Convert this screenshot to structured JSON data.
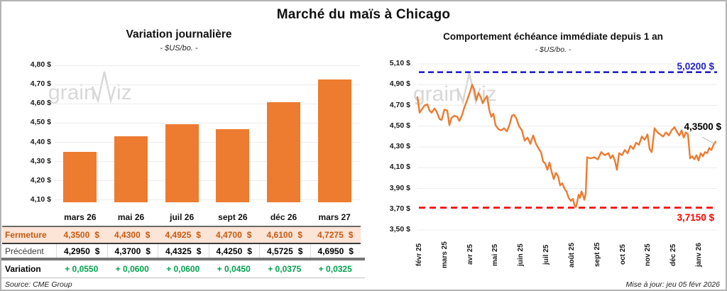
{
  "header": {
    "title": "Marché du maïs à Chicago"
  },
  "watermark": {
    "text_left": "grain",
    "text_right": "iz"
  },
  "colors": {
    "orange": "#ED7B30",
    "fermeture_text": "#C55A11",
    "fermeture_bg": "#FCE4D6",
    "variation_green": "#00A24D",
    "resistance_blue": "#2222CC",
    "support_red": "#FE0000",
    "gridline": "#ececec",
    "watermark_gray": "#d8d8d8"
  },
  "chart_data": [
    {
      "id": "variation_journaliere",
      "type": "bar",
      "title": "Variation journalière",
      "subtitle": "- $US/bo. -",
      "categories": [
        "mars 26",
        "mai 26",
        "juil 26",
        "sept 26",
        "déc 26",
        "mars 27"
      ],
      "values": [
        4.35,
        4.43,
        4.4925,
        4.47,
        4.61,
        4.7275
      ],
      "y_tick_labels": [
        "4,80 $",
        "4,70 $",
        "4,60 $",
        "4,50 $",
        "4,40 $",
        "4,30 $",
        "4,20 $",
        "4,10 $"
      ],
      "y_tick_values": [
        4.8,
        4.7,
        4.6,
        4.5,
        4.4,
        4.3,
        4.2,
        4.1
      ],
      "ylim": [
        4.085,
        4.8
      ],
      "grid": true,
      "bar_color": "#ED7B30"
    },
    {
      "id": "echeance_immediate",
      "type": "line",
      "title": "Comportement échéance immédiate depuis 1 an",
      "subtitle": "- $US/bo. -",
      "y_tick_labels": [
        "5,10 $",
        "4,90 $",
        "4,70 $",
        "4,50 $",
        "4,30 $",
        "4,10 $",
        "3,90 $",
        "3,70 $",
        "3,50 $"
      ],
      "y_tick_values": [
        5.1,
        4.9,
        4.7,
        4.5,
        4.3,
        4.1,
        3.9,
        3.7,
        3.5
      ],
      "ylim": [
        3.5,
        5.1
      ],
      "grid": true,
      "x_labels": [
        "févr 25",
        "mars 25",
        "avr 25",
        "mai 25",
        "juin 25",
        "juil 25",
        "août 25",
        "sept 25",
        "oct 25",
        "nov 25",
        "déc 25",
        "janv 26"
      ],
      "line_color": "#ED7B30",
      "resistance": {
        "value": 5.02,
        "label": "5,0200 $"
      },
      "support": {
        "value": 3.715,
        "label": "3,7150 $"
      },
      "last_point": {
        "value": 4.35,
        "label": "4,3500 $"
      },
      "points": [
        [
          0,
          4.78
        ],
        [
          3,
          4.63
        ],
        [
          6,
          4.66
        ],
        [
          10,
          4.7
        ],
        [
          14,
          4.71
        ],
        [
          17,
          4.65
        ],
        [
          20,
          4.63
        ],
        [
          24,
          4.67
        ],
        [
          27,
          4.64
        ],
        [
          31,
          4.57
        ],
        [
          34,
          4.56
        ],
        [
          38,
          4.66
        ],
        [
          42,
          4.65
        ],
        [
          45,
          4.51
        ],
        [
          48,
          4.58
        ],
        [
          52,
          4.6
        ],
        [
          56,
          4.59
        ],
        [
          59,
          4.55
        ],
        [
          63,
          4.61
        ],
        [
          66,
          4.68
        ],
        [
          70,
          4.75
        ],
        [
          74,
          4.83
        ],
        [
          77,
          4.9
        ],
        [
          80,
          4.85
        ],
        [
          83,
          4.75
        ],
        [
          86,
          4.82
        ],
        [
          89,
          4.78
        ],
        [
          92,
          4.72
        ],
        [
          95,
          4.76
        ],
        [
          98,
          4.79
        ],
        [
          101,
          4.66
        ],
        [
          104,
          4.59
        ],
        [
          107,
          4.62
        ],
        [
          110,
          4.51
        ],
        [
          114,
          4.47
        ],
        [
          118,
          4.46
        ],
        [
          122,
          4.48
        ],
        [
          126,
          4.45
        ],
        [
          130,
          4.52
        ],
        [
          133,
          4.6
        ],
        [
          136,
          4.61
        ],
        [
          139,
          4.58
        ],
        [
          143,
          4.5
        ],
        [
          147,
          4.46
        ],
        [
          151,
          4.36
        ],
        [
          155,
          4.39
        ],
        [
          159,
          4.33
        ],
        [
          163,
          4.41
        ],
        [
          167,
          4.33
        ],
        [
          171,
          4.28
        ],
        [
          174,
          4.25
        ],
        [
          177,
          4.16
        ],
        [
          180,
          4.14
        ],
        [
          183,
          4.08
        ],
        [
          186,
          4.15
        ],
        [
          189,
          4.06
        ],
        [
          192,
          3.99
        ],
        [
          195,
          4.05
        ],
        [
          198,
          4.02
        ],
        [
          201,
          3.93
        ],
        [
          204,
          3.95
        ],
        [
          207,
          3.9
        ],
        [
          210,
          3.87
        ],
        [
          213,
          3.81
        ],
        [
          216,
          3.78
        ],
        [
          219,
          3.8
        ],
        [
          221,
          3.74
        ],
        [
          223,
          3.72
        ],
        [
          225,
          3.77
        ],
        [
          227,
          3.84
        ],
        [
          229,
          3.81
        ],
        [
          231,
          3.87
        ],
        [
          233,
          3.84
        ],
        [
          235,
          3.79
        ],
        [
          237,
          3.85
        ],
        [
          239,
          4.2
        ],
        [
          244,
          4.19
        ],
        [
          249,
          4.2
        ],
        [
          254,
          4.18
        ],
        [
          259,
          4.25
        ],
        [
          264,
          4.22
        ],
        [
          269,
          4.24
        ],
        [
          272,
          4.19
        ],
        [
          275,
          4.22
        ],
        [
          278,
          4.17
        ],
        [
          281,
          4.08
        ],
        [
          284,
          4.24
        ],
        [
          288,
          4.22
        ],
        [
          292,
          4.27
        ],
        [
          296,
          4.24
        ],
        [
          300,
          4.31
        ],
        [
          304,
          4.28
        ],
        [
          308,
          4.34
        ],
        [
          312,
          4.32
        ],
        [
          316,
          4.4
        ],
        [
          320,
          4.37
        ],
        [
          324,
          4.42
        ],
        [
          327,
          4.28
        ],
        [
          330,
          4.25
        ],
        [
          334,
          4.48
        ],
        [
          338,
          4.44
        ],
        [
          342,
          4.42
        ],
        [
          346,
          4.4
        ],
        [
          350,
          4.44
        ],
        [
          354,
          4.41
        ],
        [
          358,
          4.46
        ],
        [
          362,
          4.49
        ],
        [
          366,
          4.44
        ],
        [
          369,
          4.41
        ],
        [
          372,
          4.46
        ],
        [
          375,
          4.39
        ],
        [
          378,
          4.44
        ],
        [
          381,
          4.42
        ],
        [
          384,
          4.19
        ],
        [
          387,
          4.21
        ],
        [
          390,
          4.18
        ],
        [
          393,
          4.22
        ],
        [
          396,
          4.17
        ],
        [
          399,
          4.24
        ],
        [
          402,
          4.21
        ],
        [
          405,
          4.25
        ],
        [
          408,
          4.24
        ],
        [
          411,
          4.29
        ],
        [
          414,
          4.27
        ],
        [
          417,
          4.32
        ],
        [
          420,
          4.35
        ]
      ]
    }
  ],
  "table": {
    "rows": [
      {
        "label": "Fermeture",
        "unit": "$",
        "values": [
          "4,3500",
          "4,4300",
          "4,4925",
          "4,4700",
          "4,6100",
          "4,7275"
        ]
      },
      {
        "label": "Précédent",
        "unit": "$",
        "values": [
          "4,2950",
          "4,3700",
          "4,4325",
          "4,4250",
          "4,5725",
          "4,6950"
        ]
      },
      {
        "label": "Variation",
        "unit": "",
        "values": [
          "+ 0,0550",
          "+ 0,0600",
          "+ 0,0600",
          "+ 0,0450",
          "+ 0,0375",
          "+ 0,0325"
        ]
      }
    ]
  },
  "footer": {
    "source": "Source: CME Group",
    "updated": "Mise à jour: jeu 05 févr 2026"
  }
}
